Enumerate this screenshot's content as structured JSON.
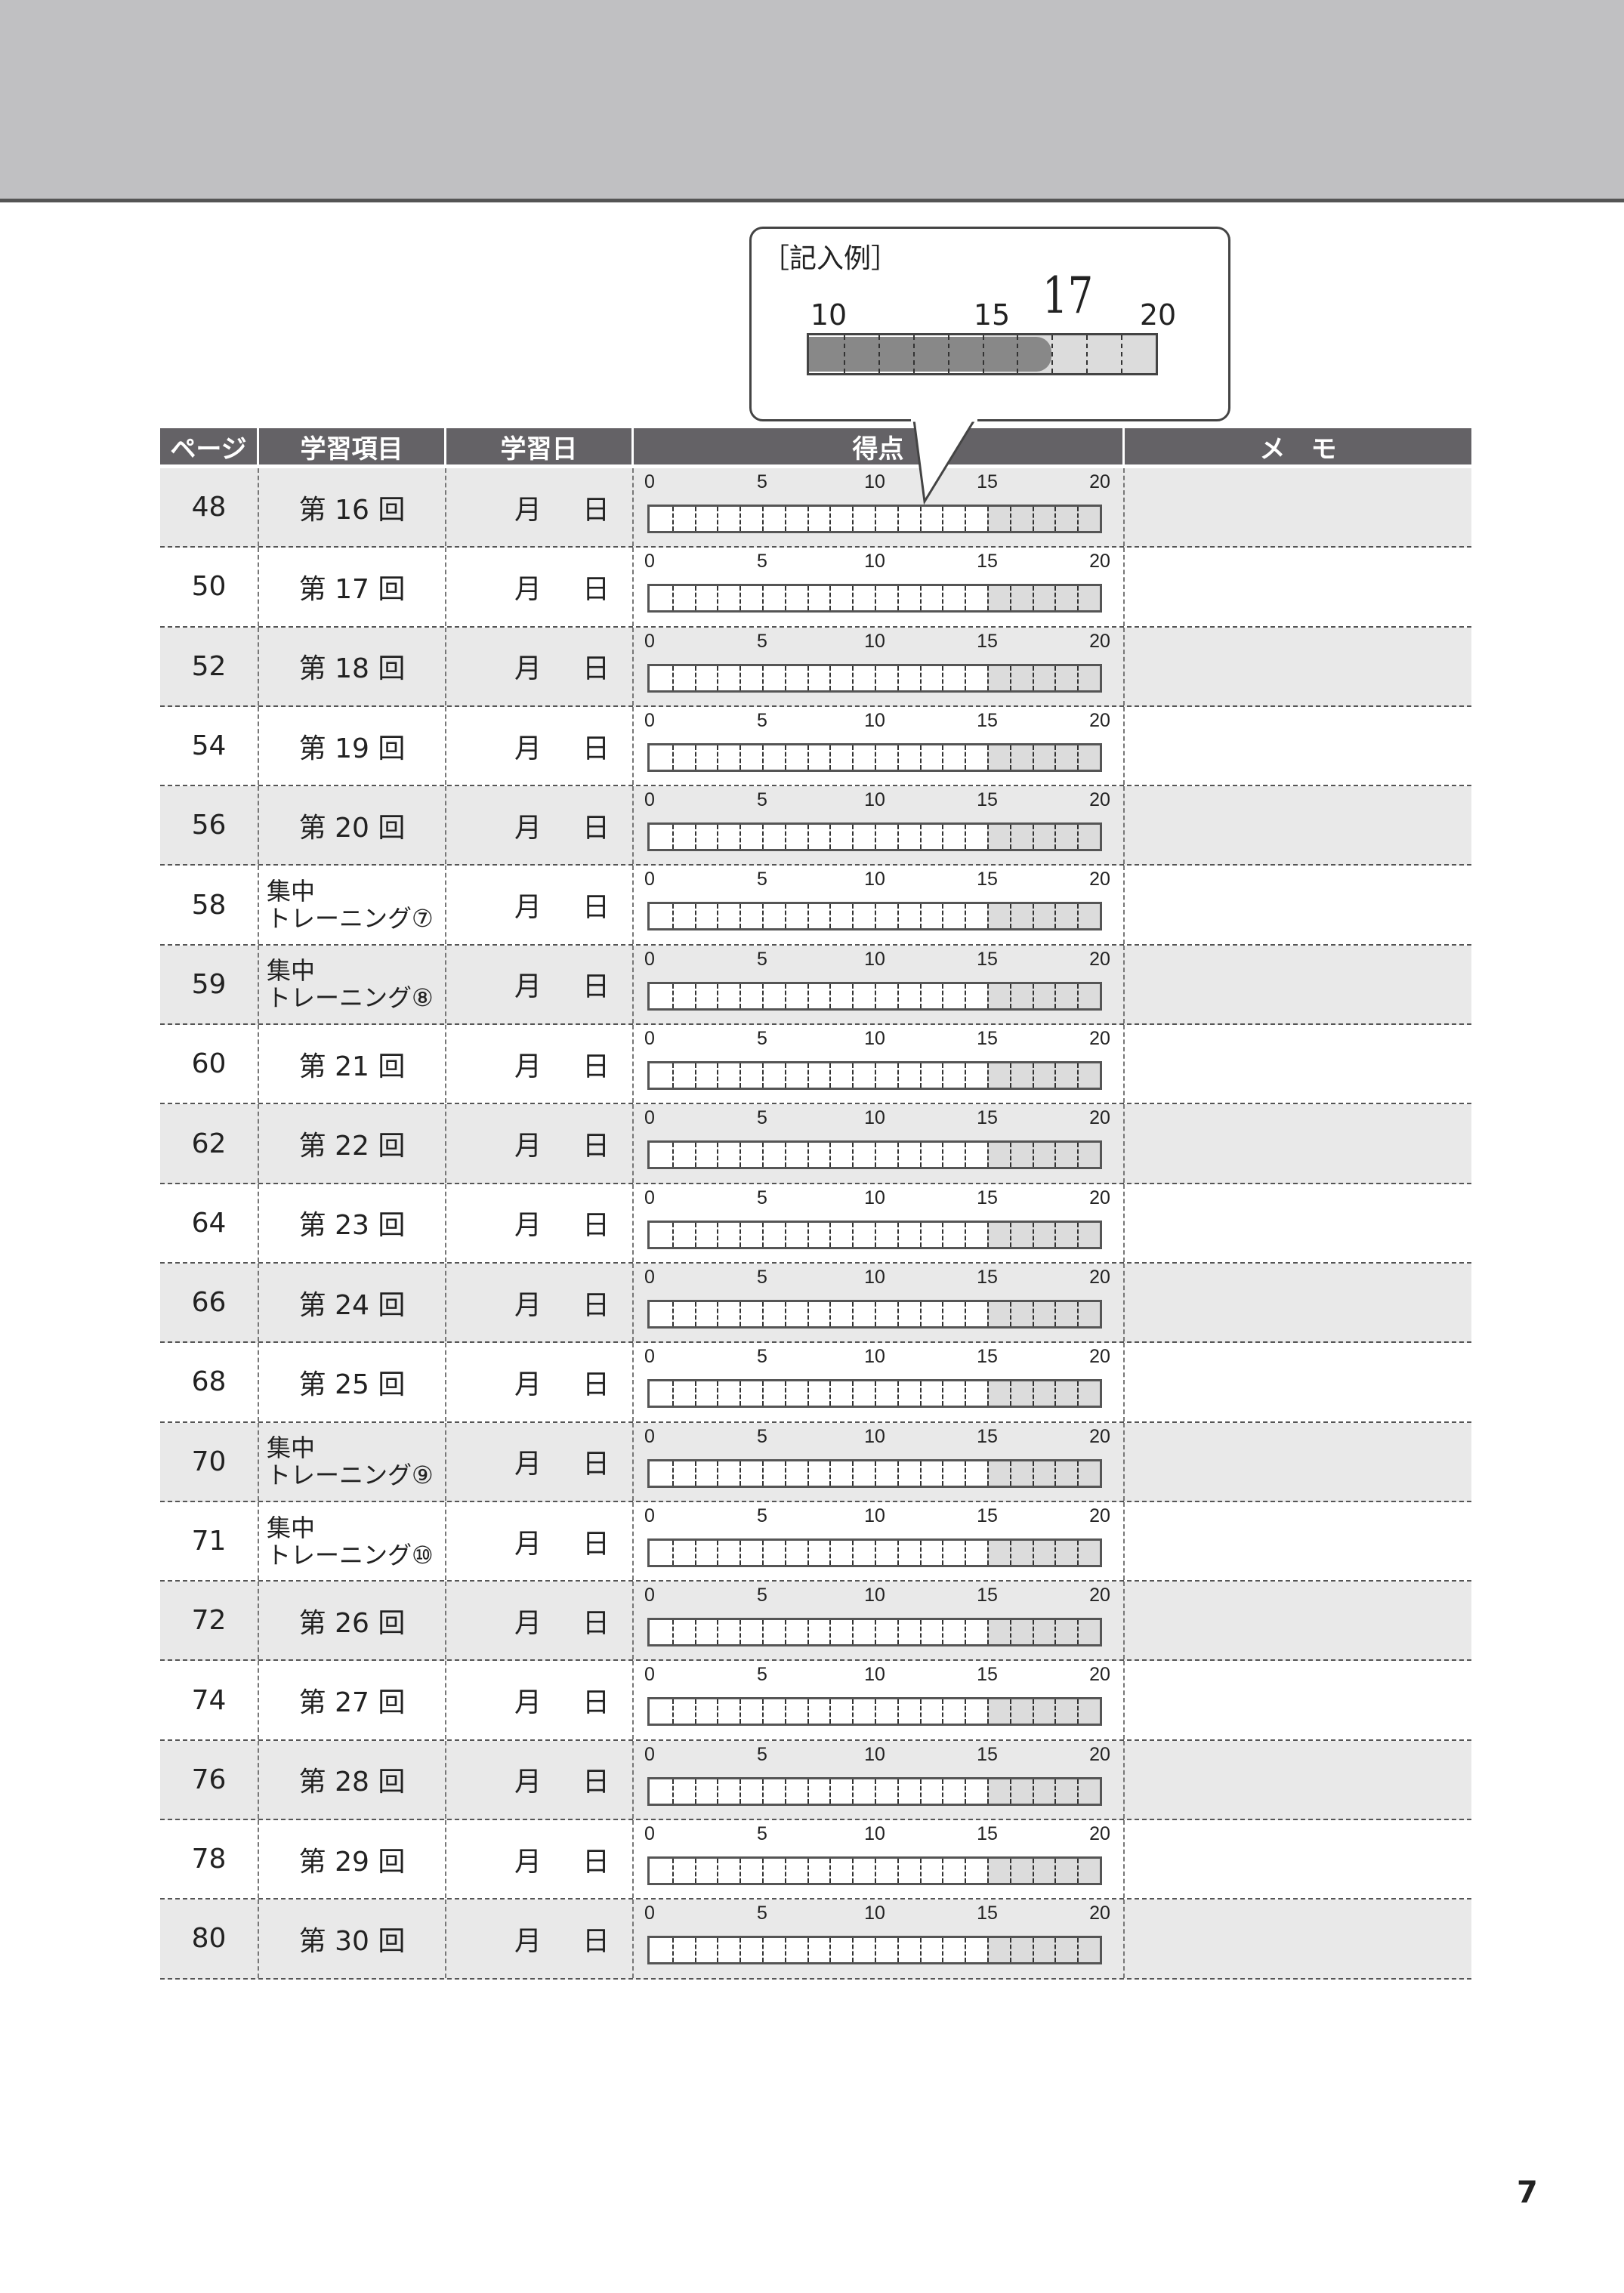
{
  "example": {
    "title": "［記入例］",
    "labels": [
      "10",
      "15",
      "20"
    ],
    "handwritten": "17",
    "score": 17,
    "range": [
      10,
      20
    ]
  },
  "headers": {
    "page": "ページ",
    "item": "学習項目",
    "date": "学習日",
    "score": "得点",
    "memo": "メ　モ"
  },
  "scale": {
    "ticks": [
      "0",
      "5",
      "10",
      "15",
      "20"
    ],
    "max": 20,
    "shaded_from": 15
  },
  "date_labels": {
    "month": "月",
    "day": "日"
  },
  "rows": [
    {
      "page": "48",
      "item": "第 16 回"
    },
    {
      "page": "50",
      "item": "第 17 回"
    },
    {
      "page": "52",
      "item": "第 18 回"
    },
    {
      "page": "54",
      "item": "第 19 回"
    },
    {
      "page": "56",
      "item": "第 20 回"
    },
    {
      "page": "58",
      "item": "集中",
      "item2": "トレーニング⑦"
    },
    {
      "page": "59",
      "item": "集中",
      "item2": "トレーニング⑧"
    },
    {
      "page": "60",
      "item": "第 21 回"
    },
    {
      "page": "62",
      "item": "第 22 回"
    },
    {
      "page": "64",
      "item": "第 23 回"
    },
    {
      "page": "66",
      "item": "第 24 回"
    },
    {
      "page": "68",
      "item": "第 25 回"
    },
    {
      "page": "70",
      "item": "集中",
      "item2": "トレーニング⑨"
    },
    {
      "page": "71",
      "item": "集中",
      "item2": "トレーニング⑩"
    },
    {
      "page": "72",
      "item": "第 26 回"
    },
    {
      "page": "74",
      "item": "第 27 回"
    },
    {
      "page": "76",
      "item": "第 28 回"
    },
    {
      "page": "78",
      "item": "第 29 回"
    },
    {
      "page": "80",
      "item": "第 30 回"
    }
  ],
  "colors": {
    "header_bg": "#646266",
    "row_shade": "#e9e9e9",
    "bar_shade": "#dcdcdc",
    "example_fill": "#888888"
  },
  "page_number": "7"
}
